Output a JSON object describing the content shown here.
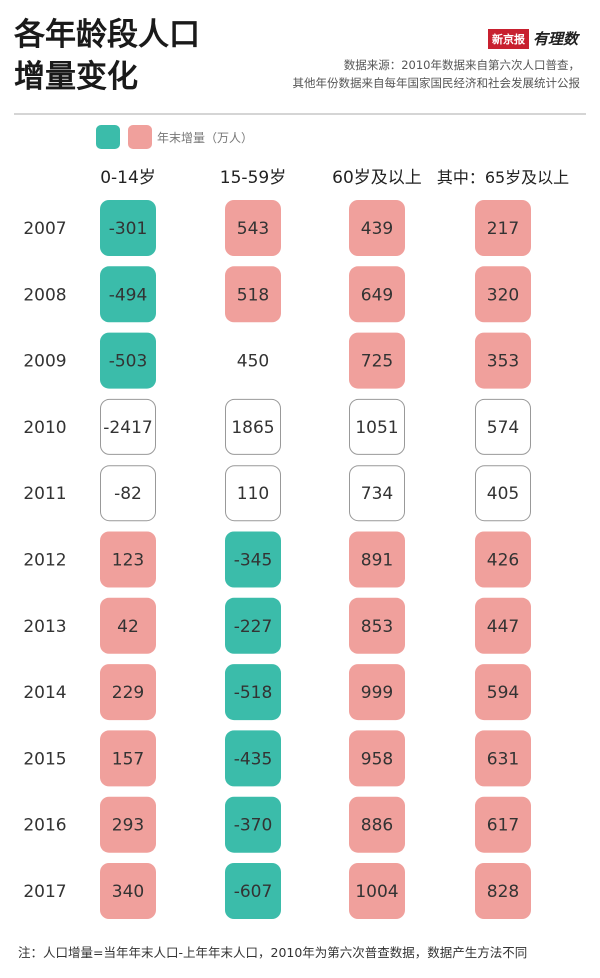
{
  "header": {
    "title_line1": "各年龄段人口",
    "title_line2": "增量变化",
    "logo_main": "新京报",
    "logo_sub": "有理数",
    "source_line1": "数据来源：2010年数据来自第六次人口普查，",
    "source_line2": "其他年份数据来自每年国家国民经济和社会发展统计公报"
  },
  "legend": {
    "label": "年末增量（万人）",
    "colors": {
      "decrease": "#3bbcaa",
      "increase": "#f0a09c"
    }
  },
  "footnote": "注：人口增量=当年年末人口-上年年末人口，2010年为第六次普查数据，数据产生方法不同",
  "chart_data": {
    "type": "table",
    "title": "各年龄段人口增量变化",
    "unit": "万人",
    "columns": [
      "0-14岁",
      "15-59岁",
      "60岁及以上",
      "其中:65岁及以上"
    ],
    "rows": [
      "2007",
      "2008",
      "2009",
      "2010",
      "2011",
      "2012",
      "2013",
      "2014",
      "2015",
      "2016",
      "2017"
    ],
    "values": [
      [
        -301,
        543,
        439,
        217
      ],
      [
        -494,
        518,
        649,
        320
      ],
      [
        -503,
        450,
        725,
        353
      ],
      [
        -2417,
        1865,
        1051,
        574
      ],
      [
        -82,
        110,
        734,
        405
      ],
      [
        123,
        -345,
        891,
        426
      ],
      [
        42,
        -227,
        853,
        447
      ],
      [
        229,
        -518,
        999,
        594
      ],
      [
        157,
        -435,
        958,
        631
      ],
      [
        293,
        -370,
        886,
        617
      ],
      [
        340,
        -607,
        1004,
        828
      ]
    ],
    "styles": [
      [
        "decrease",
        "increase",
        "increase",
        "increase"
      ],
      [
        "decrease",
        "increase",
        "increase",
        "increase"
      ],
      [
        "decrease",
        "none",
        "increase",
        "increase"
      ],
      [
        "outline",
        "outline",
        "outline",
        "outline"
      ],
      [
        "outline",
        "outline",
        "outline",
        "outline"
      ],
      [
        "increase",
        "decrease",
        "increase",
        "increase"
      ],
      [
        "increase",
        "decrease",
        "increase",
        "increase"
      ],
      [
        "increase",
        "decrease",
        "increase",
        "increase"
      ],
      [
        "increase",
        "decrease",
        "increase",
        "increase"
      ],
      [
        "increase",
        "decrease",
        "increase",
        "increase"
      ],
      [
        "increase",
        "decrease",
        "increase",
        "increase"
      ]
    ]
  }
}
